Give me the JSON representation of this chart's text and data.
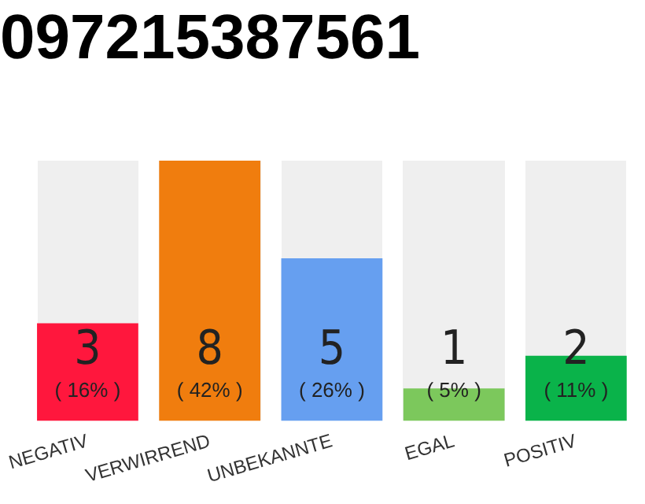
{
  "chart_data": {
    "type": "bar",
    "title": "097215387561",
    "categories": [
      "NEGATIV",
      "VERWIRREND",
      "UNBEKANNTE",
      "EGAL",
      "POSITIV"
    ],
    "values": [
      3,
      8,
      5,
      1,
      2
    ],
    "colors": [
      "#ff173d",
      "#f07d0e",
      "#669ff0",
      "#7cc85c",
      "#0ab34a"
    ],
    "value_labels": [
      "3\n( 16% )",
      "8\n( 42% )",
      "5\n( 26% )",
      "1\n( 5% )",
      "2\n( 11% )"
    ],
    "ylim": [
      0,
      8
    ],
    "tick_labels": "x",
    "grid": false,
    "legend": false
  }
}
